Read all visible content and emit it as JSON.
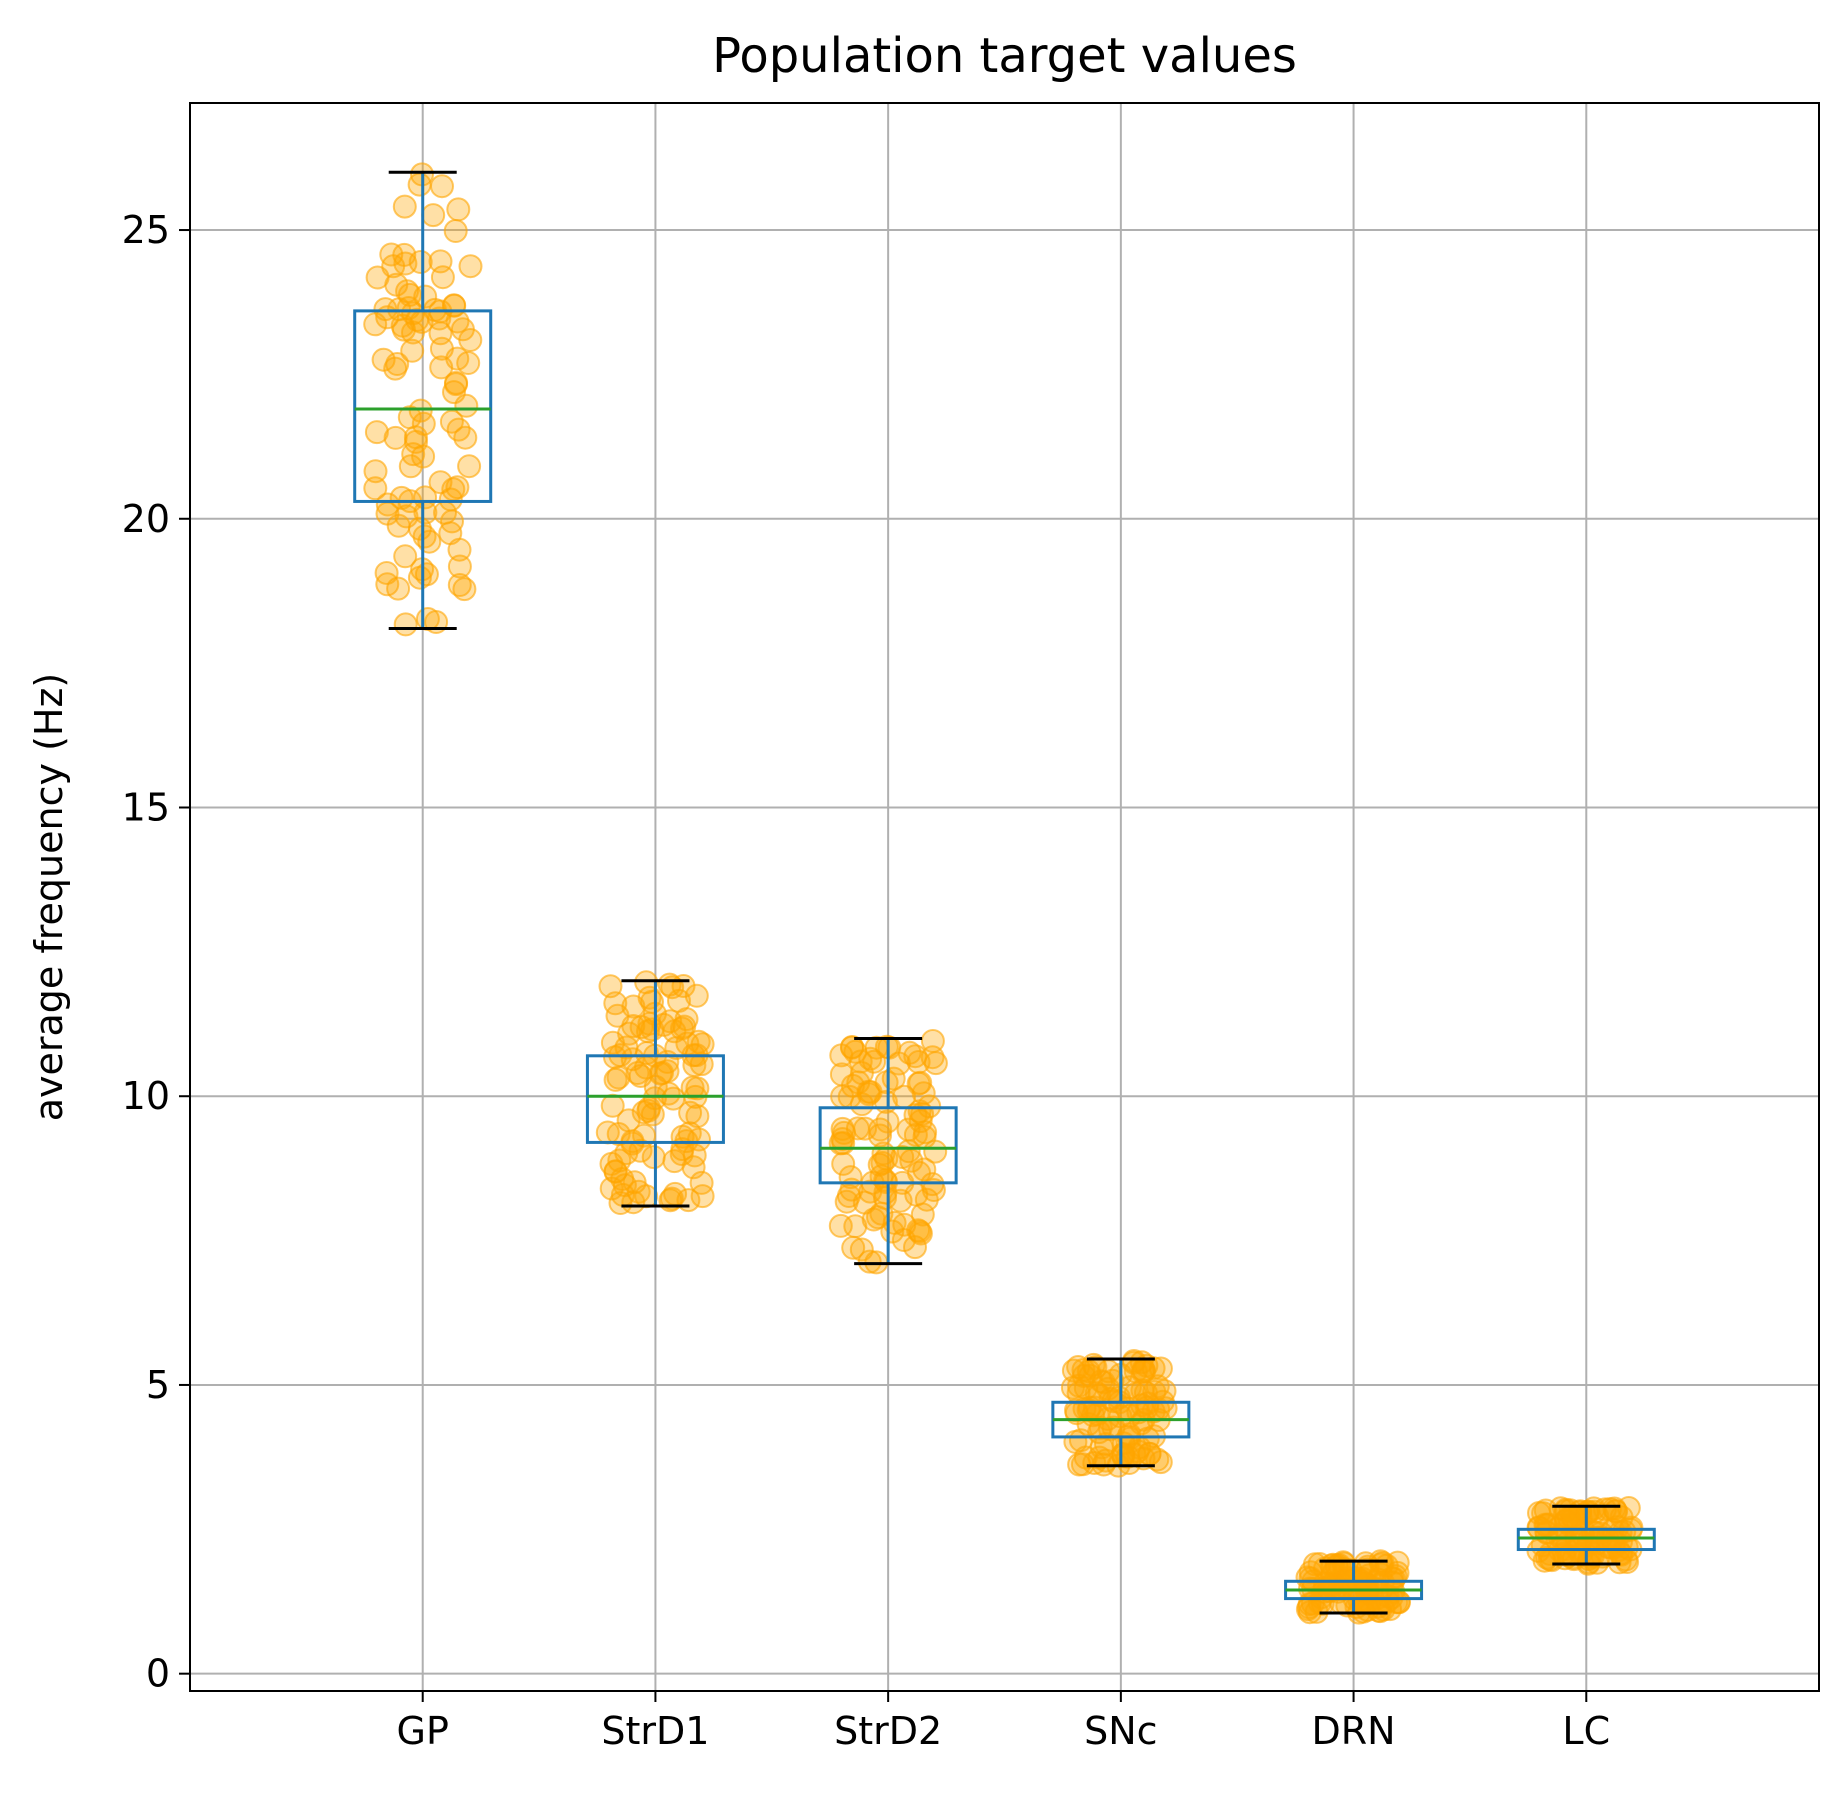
{
  "chart_data": {
    "type": "box",
    "title": "Population target values",
    "ylabel": "average frequency (Hz)",
    "xlabel": "",
    "categories": [
      "GP",
      "StrD1",
      "StrD2",
      "SNc",
      "DRN",
      "LC"
    ],
    "ylim": [
      -0.3,
      27.2
    ],
    "yticks": [
      0,
      5,
      10,
      15,
      20,
      25
    ],
    "grid": true,
    "boxes": [
      {
        "category": "GP",
        "whisker_low": 18.1,
        "q1": 20.3,
        "median": 21.9,
        "q3": 23.6,
        "whisker_high": 26.0,
        "range": [
          18.1,
          26.0
        ]
      },
      {
        "category": "StrD1",
        "whisker_low": 8.1,
        "q1": 9.2,
        "median": 10.0,
        "q3": 10.7,
        "whisker_high": 12.0,
        "range": [
          8.1,
          12.0
        ]
      },
      {
        "category": "StrD2",
        "whisker_low": 7.1,
        "q1": 8.5,
        "median": 9.1,
        "q3": 9.8,
        "whisker_high": 11.0,
        "range": [
          7.1,
          11.0
        ]
      },
      {
        "category": "SNc",
        "whisker_low": 3.6,
        "q1": 4.1,
        "median": 4.4,
        "q3": 4.7,
        "whisker_high": 5.45,
        "range": [
          3.6,
          5.45
        ]
      },
      {
        "category": "DRN",
        "whisker_low": 1.05,
        "q1": 1.3,
        "median": 1.45,
        "q3": 1.6,
        "whisker_high": 1.95,
        "range": [
          1.05,
          1.95
        ]
      },
      {
        "category": "LC",
        "whisker_low": 1.9,
        "q1": 2.15,
        "median": 2.35,
        "q3": 2.5,
        "whisker_high": 2.9,
        "range": [
          1.9,
          2.9
        ]
      }
    ],
    "scatter_points_per_group": 100,
    "colors": {
      "box": "#1f77b4",
      "median": "#2ca02c",
      "whisker_cap": "#000000",
      "points": "#ffa500",
      "grid": "#b0b0b0"
    }
  }
}
